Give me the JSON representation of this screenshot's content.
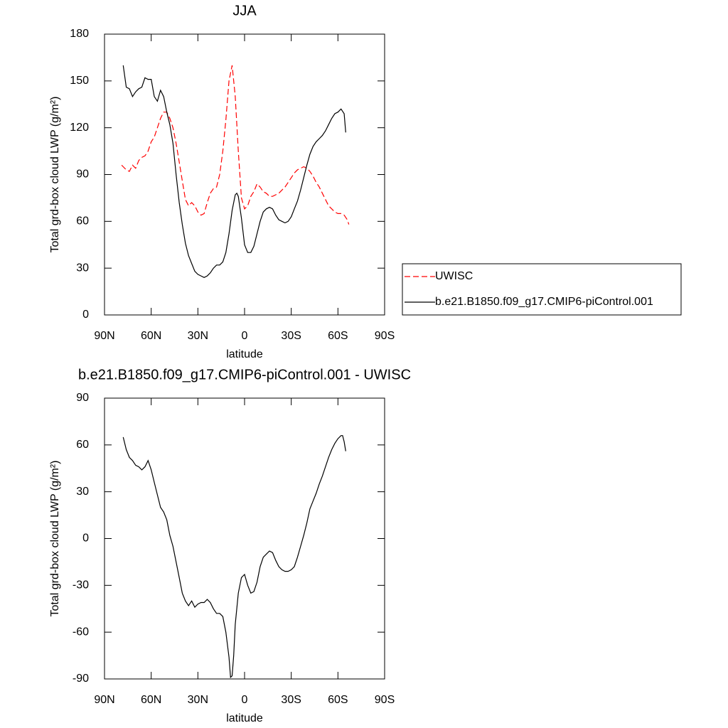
{
  "chart_data": [
    {
      "type": "line",
      "title": "JJA",
      "xlabel": "latitude",
      "ylabel": "Total grd-box cloud LWP (g/m²)",
      "xlim": [
        90,
        -90
      ],
      "xticks": [
        {
          "value": 90,
          "label": "90N"
        },
        {
          "value": 60,
          "label": "60N"
        },
        {
          "value": 30,
          "label": "30N"
        },
        0,
        {
          "value": -30,
          "label": "30S"
        },
        {
          "value": -60,
          "label": "60S"
        },
        {
          "value": -90,
          "label": "90S"
        }
      ],
      "ylim": [
        0,
        180
      ],
      "yticks": [
        0,
        30,
        60,
        90,
        120,
        150,
        180
      ],
      "legend": "right",
      "series": [
        {
          "name": "UWISC",
          "color": "#ff0000",
          "dashed": true,
          "x": [
            79,
            78,
            76,
            74,
            72,
            70,
            68,
            66,
            64,
            62,
            60,
            58,
            56,
            54,
            52,
            50,
            48,
            46,
            44,
            42,
            40,
            38,
            36,
            34,
            32,
            30,
            28,
            26,
            24,
            22,
            20,
            18,
            16,
            14,
            12,
            10,
            8,
            6,
            4,
            2,
            0,
            -2,
            -4,
            -6,
            -8,
            -10,
            -12,
            -14,
            -16,
            -18,
            -20,
            -22,
            -24,
            -26,
            -28,
            -30,
            -32,
            -34,
            -36,
            -38,
            -40,
            -42,
            -44,
            -46,
            -48,
            -50,
            -52,
            -54,
            -56,
            -58,
            -60,
            -62,
            -64,
            -66,
            -67
          ],
          "values": [
            96,
            95,
            93,
            92,
            96,
            94,
            99,
            101,
            102,
            105,
            111,
            114,
            120,
            126,
            130,
            130,
            126,
            120,
            110,
            98,
            86,
            74,
            70,
            72,
            70,
            66,
            64,
            65,
            72,
            78,
            81,
            82,
            90,
            105,
            125,
            150,
            160,
            140,
            105,
            75,
            68,
            70,
            76,
            79,
            84,
            82,
            79,
            78,
            76,
            76,
            77,
            78,
            80,
            82,
            85,
            88,
            91,
            93,
            94,
            95,
            94,
            92,
            89,
            85,
            82,
            78,
            74,
            70,
            68,
            66,
            65,
            65,
            64,
            61,
            58
          ]
        },
        {
          "name": "b.e21.B1850.f09_g17.CMIP6-piControl.001",
          "color": "#000000",
          "dashed": false,
          "x": [
            78,
            76,
            74,
            72,
            70,
            68,
            66,
            64,
            62,
            60,
            58,
            56,
            54,
            52,
            50,
            48,
            46,
            44,
            42,
            40,
            38,
            36,
            34,
            32,
            30,
            28,
            26,
            24,
            22,
            20,
            18,
            16,
            14,
            12,
            10,
            8,
            6,
            5,
            4,
            2,
            0,
            -2,
            -4,
            -6,
            -8,
            -10,
            -12,
            -14,
            -16,
            -18,
            -20,
            -22,
            -24,
            -26,
            -28,
            -30,
            -32,
            -34,
            -36,
            -38,
            -40,
            -42,
            -44,
            -46,
            -48,
            -50,
            -52,
            -54,
            -56,
            -58,
            -60,
            -62,
            -64,
            -65
          ],
          "values": [
            160,
            146,
            145,
            140,
            143,
            145,
            146,
            152,
            151,
            151,
            140,
            137,
            144,
            140,
            130,
            122,
            110,
            90,
            72,
            58,
            46,
            38,
            33,
            28,
            26,
            25,
            24,
            25,
            27,
            30,
            32,
            32,
            34,
            40,
            52,
            67,
            77,
            78,
            76,
            62,
            45,
            40,
            40,
            44,
            52,
            60,
            66,
            68,
            69,
            68,
            64,
            61,
            60,
            59,
            60,
            63,
            68,
            73,
            80,
            88,
            96,
            103,
            108,
            111,
            113,
            115,
            118,
            122,
            126,
            129,
            130,
            132,
            129,
            117
          ]
        }
      ]
    },
    {
      "type": "line",
      "title": "b.e21.B1850.f09_g17.CMIP6-piControl.001 - UWISC",
      "xlabel": "latitude",
      "ylabel": "Total grd-box cloud LWP (g/m²)",
      "xlim": [
        90,
        -90
      ],
      "xticks": [
        {
          "value": 90,
          "label": "90N"
        },
        {
          "value": 60,
          "label": "60N"
        },
        {
          "value": 30,
          "label": "30N"
        },
        0,
        {
          "value": -30,
          "label": "30S"
        },
        {
          "value": -60,
          "label": "60S"
        },
        {
          "value": -90,
          "label": "90S"
        }
      ],
      "ylim": [
        -90,
        90
      ],
      "yticks": [
        -90,
        -60,
        -30,
        0,
        30,
        60,
        90
      ],
      "series": [
        {
          "color": "#000000",
          "dashed": false,
          "x": [
            78,
            76,
            74,
            72,
            70,
            68,
            66,
            64,
            62,
            60,
            58,
            56,
            54,
            52,
            50,
            48,
            46,
            44,
            42,
            40,
            38,
            36,
            34,
            32,
            30,
            28,
            26,
            24,
            22,
            20,
            18,
            16,
            14,
            12,
            10,
            9,
            8,
            7,
            6,
            4,
            2,
            0,
            -2,
            -4,
            -6,
            -8,
            -10,
            -12,
            -14,
            -16,
            -18,
            -20,
            -22,
            -24,
            -26,
            -28,
            -30,
            -32,
            -34,
            -36,
            -38,
            -40,
            -42,
            -44,
            -46,
            -48,
            -50,
            -52,
            -54,
            -56,
            -58,
            -60,
            -62,
            -63,
            -64,
            -65
          ],
          "values": [
            65,
            57,
            52,
            50,
            47,
            46,
            44,
            46,
            50,
            44,
            36,
            28,
            20,
            17,
            12,
            2,
            -5,
            -15,
            -25,
            -35,
            -40,
            -43,
            -40,
            -44,
            -42,
            -41,
            -41,
            -39,
            -41,
            -45,
            -48,
            -48,
            -50,
            -60,
            -76,
            -89,
            -88,
            -75,
            -55,
            -35,
            -25,
            -23,
            -30,
            -35,
            -34,
            -28,
            -18,
            -12,
            -10,
            -8,
            -9,
            -14,
            -18,
            -20,
            -21,
            -21,
            -20,
            -18,
            -12,
            -5,
            2,
            10,
            19,
            24,
            29,
            35,
            40,
            46,
            52,
            57,
            61,
            64,
            66,
            66,
            62,
            56
          ]
        }
      ]
    }
  ]
}
